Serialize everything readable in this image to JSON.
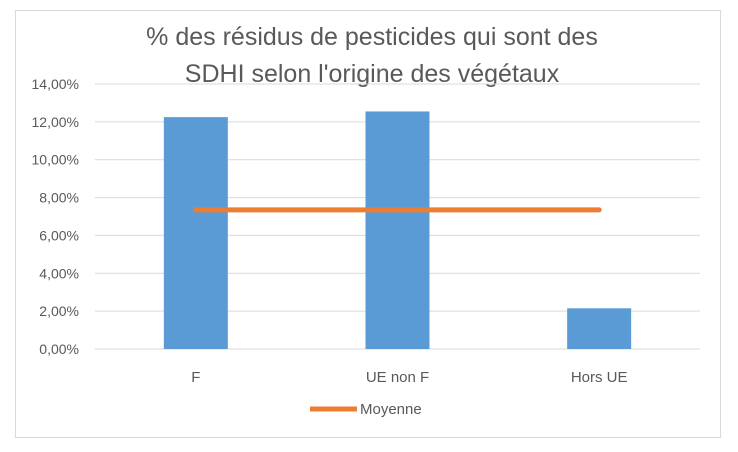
{
  "chart_data": {
    "type": "bar",
    "title_lines": [
      "% des résidus de pesticides qui sont des",
      "SDHI selon l'origine des végétaux"
    ],
    "categories": [
      "F",
      "UE non F",
      "Hors UE"
    ],
    "series": [
      {
        "values": [
          12.25,
          12.55,
          2.15
        ],
        "color": "#5b9bd5"
      }
    ],
    "overlay_line": {
      "name": "Moyenne",
      "value": 7.35,
      "color": "#ed7d31"
    },
    "ylim": [
      0,
      14
    ],
    "yticks": [
      0,
      2,
      4,
      6,
      8,
      10,
      12,
      14
    ],
    "ytick_labels": [
      "0,00%",
      "2,00%",
      "4,00%",
      "6,00%",
      "8,00%",
      "10,00%",
      "12,00%",
      "14,00%"
    ],
    "grid": true,
    "legend_position": "bottom"
  }
}
